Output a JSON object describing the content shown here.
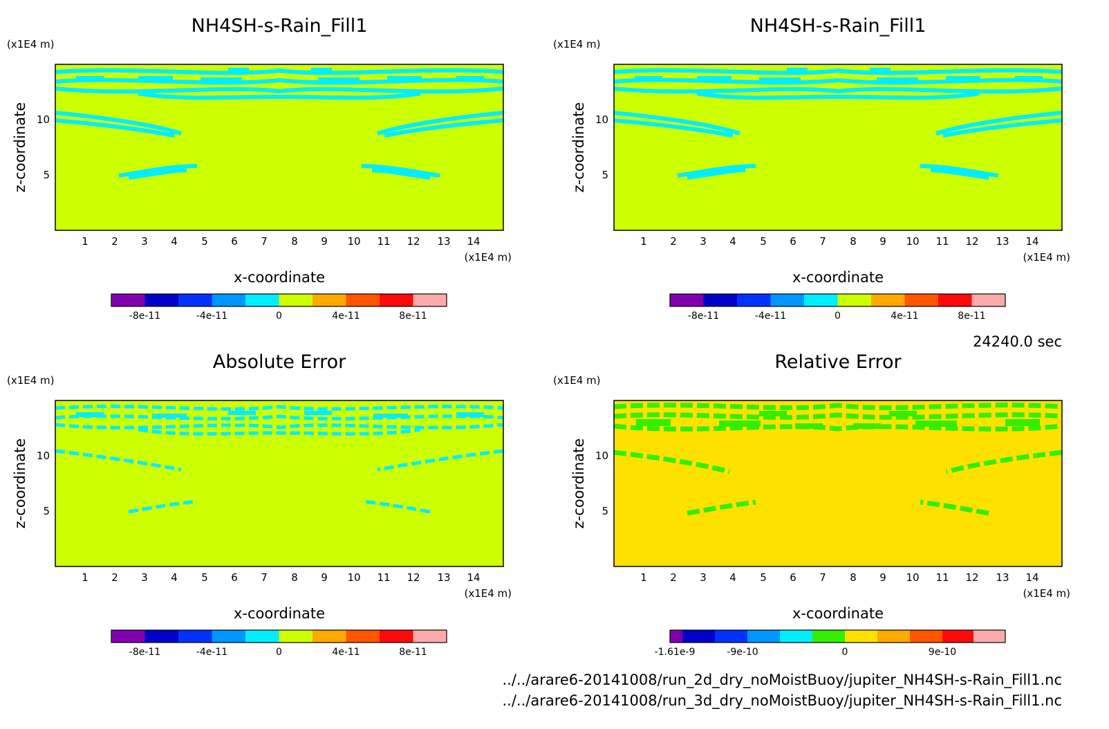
{
  "time_label": "24240.0 sec",
  "files": [
    "../../arare6-20141008/run_2d_dry_noMoistBuoy/jupiter_NH4SH-s-Rain_Fill1.nc",
    "../../arare6-20141008/run_3d_dry_noMoistBuoy/jupiter_NH4SH-s-Rain_Fill1.nc"
  ],
  "colors": {
    "background_field": "#ccff00",
    "contour_field": "#00eeff",
    "rel_background": "#ffe100",
    "rel_contour": "#33ee00"
  },
  "chart_data": [
    {
      "type": "heatmap",
      "title": "NH4SH-s-Rain_Fill1",
      "xlabel": "x-coordinate",
      "ylabel": "z-coordinate",
      "x_unit": "(x1E4 m)",
      "y_unit": "(x1E4 m)",
      "xlim": [
        0,
        15
      ],
      "ylim": [
        0,
        15
      ],
      "x_ticks": [
        "1",
        "2",
        "3",
        "4",
        "5",
        "6",
        "7",
        "8",
        "9",
        "10",
        "11",
        "12",
        "13",
        "14"
      ],
      "y_ticks": [
        "5",
        "10"
      ],
      "colorbar": {
        "colors": [
          "#8000b0",
          "#0000c8",
          "#0032ff",
          "#0096ff",
          "#00eeff",
          "#ccff00",
          "#ffaa00",
          "#ff5500",
          "#ff0a0a",
          "#ffaaaa"
        ],
        "labels": [
          "-8e-11",
          "-4e-11",
          "0",
          "4e-11",
          "8e-11"
        ],
        "label_positions": [
          1,
          3,
          5,
          7,
          9
        ]
      }
    },
    {
      "type": "heatmap",
      "title": "NH4SH-s-Rain_Fill1",
      "xlabel": "x-coordinate",
      "ylabel": "z-coordinate",
      "x_unit": "(x1E4 m)",
      "y_unit": "(x1E4 m)",
      "xlim": [
        0,
        15
      ],
      "ylim": [
        0,
        15
      ],
      "x_ticks": [
        "1",
        "2",
        "3",
        "4",
        "5",
        "6",
        "7",
        "8",
        "9",
        "10",
        "11",
        "12",
        "13",
        "14"
      ],
      "y_ticks": [
        "5",
        "10"
      ],
      "colorbar": {
        "colors": [
          "#8000b0",
          "#0000c8",
          "#0032ff",
          "#0096ff",
          "#00eeff",
          "#ccff00",
          "#ffaa00",
          "#ff5500",
          "#ff0a0a",
          "#ffaaaa"
        ],
        "labels": [
          "-8e-11",
          "-4e-11",
          "0",
          "4e-11",
          "8e-11"
        ],
        "label_positions": [
          1,
          3,
          5,
          7,
          9
        ]
      }
    },
    {
      "type": "heatmap",
      "title": "Absolute Error",
      "xlabel": "x-coordinate",
      "ylabel": "z-coordinate",
      "x_unit": "(x1E4 m)",
      "y_unit": "(x1E4 m)",
      "xlim": [
        0,
        15
      ],
      "ylim": [
        0,
        15
      ],
      "x_ticks": [
        "1",
        "2",
        "3",
        "4",
        "5",
        "6",
        "7",
        "8",
        "9",
        "10",
        "11",
        "12",
        "13",
        "14"
      ],
      "y_ticks": [
        "5",
        "10"
      ],
      "colorbar": {
        "colors": [
          "#8000b0",
          "#0000c8",
          "#0032ff",
          "#0096ff",
          "#00eeff",
          "#ccff00",
          "#ffaa00",
          "#ff5500",
          "#ff0a0a",
          "#ffaaaa"
        ],
        "labels": [
          "-8e-11",
          "-4e-11",
          "0",
          "4e-11",
          "8e-11"
        ],
        "label_positions": [
          1,
          3,
          5,
          7,
          9
        ]
      }
    },
    {
      "type": "heatmap",
      "title": "Relative Error",
      "xlabel": "x-coordinate",
      "ylabel": "z-coordinate",
      "x_unit": "(x1E4 m)",
      "y_unit": "(x1E4 m)",
      "xlim": [
        0,
        15
      ],
      "ylim": [
        0,
        15
      ],
      "x_ticks": [
        "1",
        "2",
        "3",
        "4",
        "5",
        "6",
        "7",
        "8",
        "9",
        "10",
        "11",
        "12",
        "13",
        "14"
      ],
      "y_ticks": [
        "5",
        "10"
      ],
      "colorbar": {
        "colors": [
          "#8000b0",
          "#0000c8",
          "#0032ff",
          "#0096ff",
          "#00eeff",
          "#33ee00",
          "#ffe100",
          "#ffaa00",
          "#ff5500",
          "#ff0a0a",
          "#ffaaaa"
        ],
        "labels": [
          "-1.61e-9",
          "-9e-10",
          "0",
          "9e-10"
        ],
        "label_positions": [
          0.3,
          2.2,
          5,
          8
        ]
      }
    }
  ]
}
